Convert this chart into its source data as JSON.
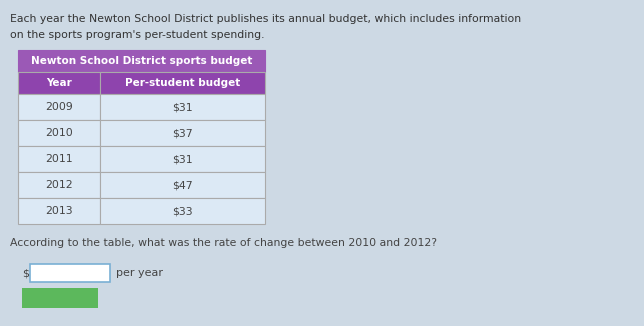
{
  "intro_text_line1": "Each year the Newton School District publishes its annual budget, which includes information",
  "intro_text_line2": "on the sports program's per-student spending.",
  "table_title": "Newton School District sports budget",
  "col_headers": [
    "Year",
    "Per-student budget"
  ],
  "rows": [
    [
      "2009",
      "$31"
    ],
    [
      "2010",
      "$37"
    ],
    [
      "2011",
      "$31"
    ],
    [
      "2012",
      "$47"
    ],
    [
      "2013",
      "$33"
    ]
  ],
  "question_text": "According to the table, what was the rate of change between 2010 and 2012?",
  "input_label_prefix": "$",
  "input_label_suffix": "per year",
  "bg_color": "#cdd9e4",
  "table_title_bg": "#9b59b6",
  "table_header_bg": "#8e44ad",
  "table_row_bg": "#dce9f5",
  "table_border_color": "#aaaaaa",
  "table_title_text_color": "#ffffff",
  "table_header_text_color": "#ffffff",
  "table_row_text_color": "#444444",
  "intro_text_color": "#333333",
  "question_text_color": "#444444",
  "submit_btn_color": "#5cb85c",
  "input_box_color": "#ffffff",
  "input_box_border": "#7ab0d4"
}
